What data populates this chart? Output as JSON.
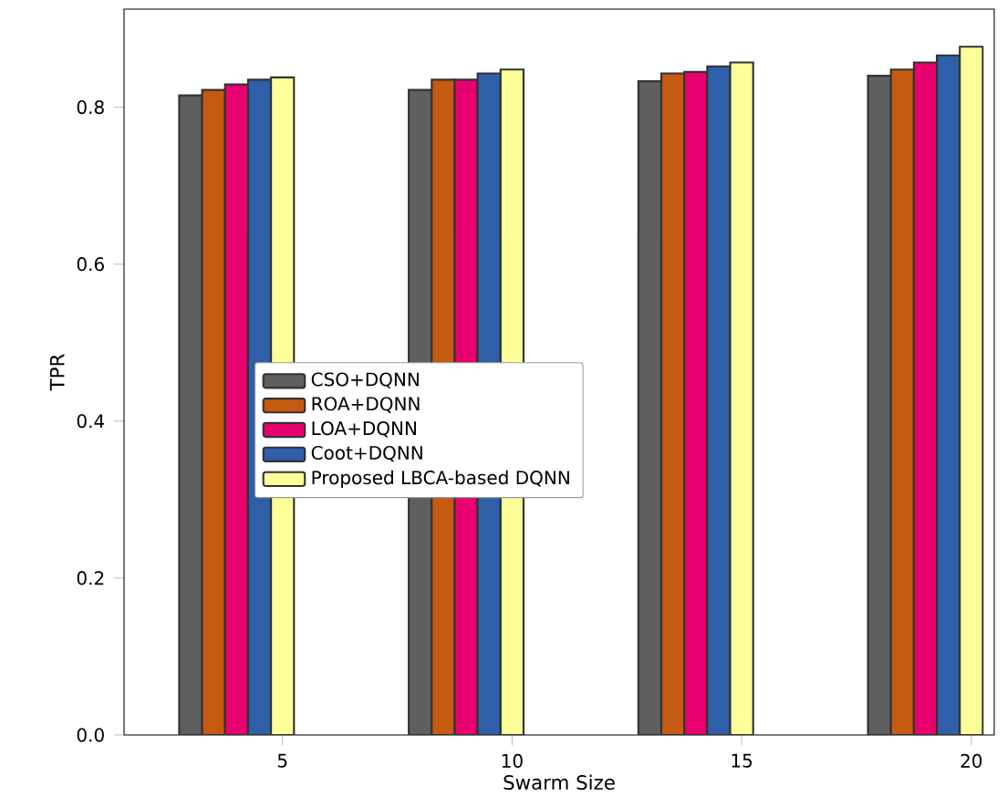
{
  "chart_data": {
    "type": "bar",
    "xlabel": "Swarm Size",
    "ylabel": "TPR",
    "x": [
      5,
      10,
      15,
      20
    ],
    "series": [
      {
        "name": "CSO+DQNN",
        "color": "#5f5f5f",
        "values": [
          0.815,
          0.822,
          0.833,
          0.84
        ]
      },
      {
        "name": "ROA+DQNN",
        "color": "#c55a11",
        "values": [
          0.822,
          0.835,
          0.843,
          0.848
        ]
      },
      {
        "name": "LOA+DQNN",
        "color": "#e8006f",
        "values": [
          0.829,
          0.835,
          0.845,
          0.857
        ]
      },
      {
        "name": "Coot+DQNN",
        "color": "#2e5fa8",
        "values": [
          0.835,
          0.843,
          0.852,
          0.866
        ]
      },
      {
        "name": "Proposed LBCA-based DQNN",
        "color": "#ffff99",
        "values": [
          0.838,
          0.848,
          0.857,
          0.877
        ]
      }
    ],
    "xlim": [
      1.55,
      20.5
    ],
    "xticks": [
      5,
      10,
      15,
      20
    ],
    "ylim": [
      0,
      0.925
    ],
    "yticks": [
      {
        "value": 0,
        "label": "0.0"
      },
      0.2,
      0.4,
      0.6,
      0.8
    ],
    "legend": "center left",
    "grid": false
  }
}
